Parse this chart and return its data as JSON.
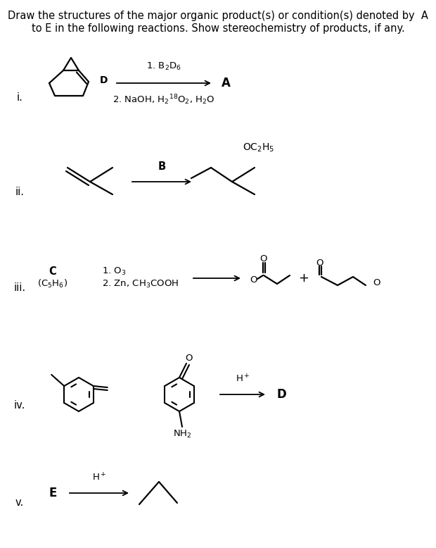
{
  "background_color": "#ffffff",
  "text_color": "#000000",
  "title1": "Draw the structures of the major organic product(s) or condition(s) denoted by  A",
  "title2": "to E in the following reactions. Show stereochemistry of products, if any.",
  "reaction_labels": [
    "i.",
    "ii.",
    "iii.",
    "iv.",
    "v."
  ],
  "lw": 1.6
}
